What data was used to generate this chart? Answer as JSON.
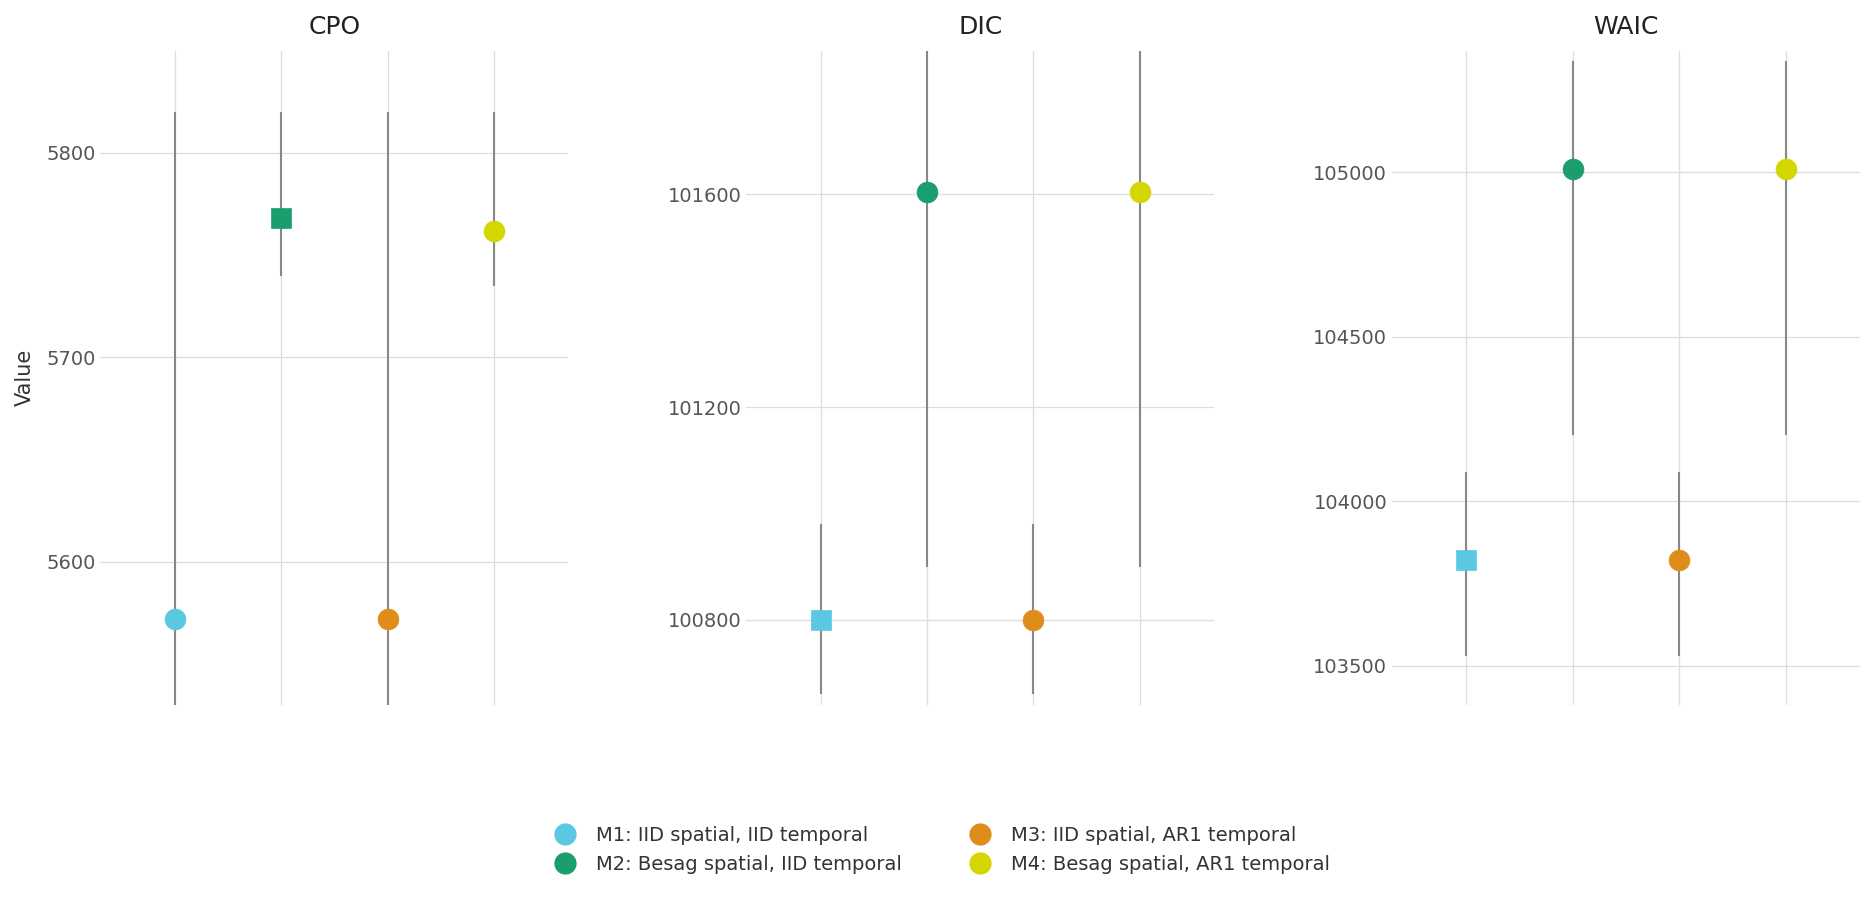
{
  "panels": [
    "CPO",
    "DIC",
    "WAIC"
  ],
  "models": [
    "M1",
    "M2",
    "M3",
    "M4"
  ],
  "colors": {
    "M1": "#5BC8E2",
    "M2": "#1A9E6E",
    "M3": "#E08C1A",
    "M4": "#D4D600"
  },
  "markers": {
    "CPO": {
      "M1": "o",
      "M2": "s",
      "M3": "o",
      "M4": "o"
    },
    "DIC": {
      "M1": "s",
      "M2": "o",
      "M3": "o",
      "M4": "o"
    },
    "WAIC": {
      "M1": "s",
      "M2": "o",
      "M3": "o",
      "M4": "o"
    }
  },
  "center_values": {
    "CPO": {
      "M1": 5572,
      "M2": 5768,
      "M3": 5572,
      "M4": 5762
    },
    "DIC": {
      "M1": 100800,
      "M2": 101605,
      "M3": 100800,
      "M4": 101605
    },
    "WAIC": {
      "M1": 103820,
      "M2": 105010,
      "M3": 103820,
      "M4": 105010
    }
  },
  "error_lo": {
    "CPO": {
      "M1": 5480,
      "M2": 5740,
      "M3": 5480,
      "M4": 5735
    },
    "DIC": {
      "M1": 100660,
      "M2": 100900,
      "M3": 100660,
      "M4": 100900
    },
    "WAIC": {
      "M1": 103530,
      "M2": 104200,
      "M3": 103530,
      "M4": 104200
    }
  },
  "error_hi": {
    "CPO": {
      "M1": 5820,
      "M2": 5820,
      "M3": 5820,
      "M4": 5820
    },
    "DIC": {
      "M1": 100980,
      "M2": 101870,
      "M3": 100980,
      "M4": 101870
    },
    "WAIC": {
      "M1": 104090,
      "M2": 105340,
      "M3": 104090,
      "M4": 105340
    }
  },
  "ylims": {
    "CPO": [
      5530,
      5850
    ],
    "DIC": [
      100640,
      101870
    ],
    "WAIC": [
      103380,
      105370
    ]
  },
  "yticks": {
    "CPO": [
      5600,
      5700,
      5800
    ],
    "DIC": [
      100800,
      101200,
      101600
    ],
    "WAIC": [
      103500,
      104000,
      104500,
      105000
    ]
  },
  "x_positions": {
    "M1": 1,
    "M2": 2,
    "M3": 3,
    "M4": 4
  },
  "xlim": [
    0.3,
    4.7
  ],
  "markersize": 15,
  "legend_labels": [
    "M1: IID spatial, IID temporal",
    "M2: Besag spatial, IID temporal",
    "M3: IID spatial, AR1 temporal",
    "M4: Besag spatial, AR1 temporal"
  ],
  "legend_colors": [
    "#5BC8E2",
    "#1A9E6E",
    "#E08C1A",
    "#D4D600"
  ],
  "ylabel": "Value",
  "background_color": "#FFFFFF",
  "grid_color": "#DDDDDD",
  "title_fontsize": 18,
  "label_fontsize": 15,
  "tick_fontsize": 14,
  "legend_fontsize": 14
}
